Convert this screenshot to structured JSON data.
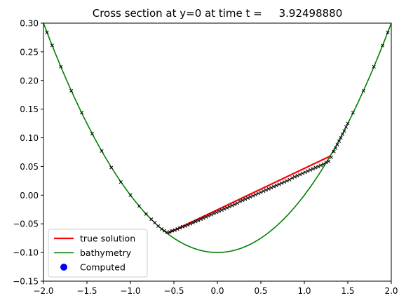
{
  "chart_data": {
    "type": "line",
    "title": "Cross section at y=0 at time t =     3.92498880",
    "xlabel": "",
    "ylabel": "",
    "xlim": [
      -2.0,
      2.0
    ],
    "ylim": [
      -0.15,
      0.3
    ],
    "xticks": [
      -2.0,
      -1.5,
      -1.0,
      -0.5,
      0.0,
      0.5,
      1.0,
      1.5,
      2.0
    ],
    "xtick_labels": [
      "−2.0",
      "−1.5",
      "−1.0",
      "−0.5",
      "0.0",
      "0.5",
      "1.0",
      "1.5",
      "2.0"
    ],
    "yticks": [
      -0.15,
      -0.1,
      -0.05,
      0.0,
      0.05,
      0.1,
      0.15,
      0.2,
      0.25,
      0.3
    ],
    "ytick_labels": [
      "−0.15",
      "−0.10",
      "−0.05",
      "0.00",
      "0.05",
      "0.10",
      "0.15",
      "0.20",
      "0.25",
      "0.30"
    ],
    "grid": false,
    "legend_position": "lower-left",
    "series": [
      {
        "name": "true solution",
        "kind": "line",
        "color": "#ff0000",
        "x": [
          -0.574,
          1.296
        ],
        "y": [
          -0.067,
          0.068
        ]
      },
      {
        "name": "bathymetry",
        "kind": "line",
        "color": "#008000",
        "formula": "y = 0.1*x^2 - 0.1",
        "x_range": [
          -2.0,
          2.0
        ]
      },
      {
        "name": "Computed",
        "kind": "scatter",
        "color": "#0000ff",
        "marker_color_on_plot": "#000000",
        "x": [
          -1.96,
          -1.9,
          -1.8,
          -1.68,
          -1.56,
          -1.44,
          -1.33,
          -1.22,
          -1.11,
          -1.0,
          -0.9,
          -0.82,
          -0.76,
          -0.72,
          -0.68,
          -0.64,
          -0.61,
          -0.58,
          -0.55,
          -0.52,
          -0.49,
          -0.46,
          -0.43,
          -0.4,
          -0.37,
          -0.34,
          -0.31,
          -0.28,
          -0.25,
          -0.22,
          -0.19,
          -0.16,
          -0.13,
          -0.1,
          -0.07,
          -0.04,
          -0.01,
          0.02,
          0.05,
          0.08,
          0.11,
          0.14,
          0.17,
          0.2,
          0.23,
          0.26,
          0.29,
          0.32,
          0.35,
          0.38,
          0.41,
          0.44,
          0.47,
          0.5,
          0.53,
          0.56,
          0.59,
          0.62,
          0.65,
          0.68,
          0.71,
          0.74,
          0.77,
          0.8,
          0.83,
          0.86,
          0.89,
          0.92,
          0.95,
          0.98,
          1.01,
          1.04,
          1.07,
          1.1,
          1.13,
          1.16,
          1.19,
          1.22,
          1.25,
          1.28,
          1.31,
          1.34,
          1.36,
          1.38,
          1.4,
          1.42,
          1.44,
          1.46,
          1.48,
          1.5,
          1.56,
          1.68,
          1.8,
          1.9,
          1.96
        ],
        "y": [
          0.284,
          0.261,
          0.224,
          0.182,
          0.144,
          0.107,
          0.077,
          0.048,
          0.023,
          0.0,
          -0.019,
          -0.033,
          -0.042,
          -0.048,
          -0.054,
          -0.059,
          -0.062,
          -0.065,
          -0.064,
          -0.062,
          -0.061,
          -0.059,
          -0.057,
          -0.055,
          -0.054,
          -0.052,
          -0.05,
          -0.048,
          -0.046,
          -0.044,
          -0.042,
          -0.04,
          -0.038,
          -0.036,
          -0.034,
          -0.032,
          -0.03,
          -0.028,
          -0.026,
          -0.024,
          -0.022,
          -0.02,
          -0.018,
          -0.016,
          -0.014,
          -0.011,
          -0.009,
          -0.007,
          -0.005,
          -0.003,
          -0.001,
          0.001,
          0.003,
          0.005,
          0.007,
          0.009,
          0.011,
          0.013,
          0.015,
          0.017,
          0.019,
          0.021,
          0.023,
          0.025,
          0.027,
          0.03,
          0.032,
          0.034,
          0.036,
          0.038,
          0.04,
          0.042,
          0.044,
          0.046,
          0.048,
          0.05,
          0.052,
          0.054,
          0.057,
          0.059,
          0.066,
          0.076,
          0.082,
          0.088,
          0.094,
          0.1,
          0.106,
          0.112,
          0.119,
          0.125,
          0.144,
          0.182,
          0.224,
          0.261,
          0.284
        ]
      }
    ]
  }
}
